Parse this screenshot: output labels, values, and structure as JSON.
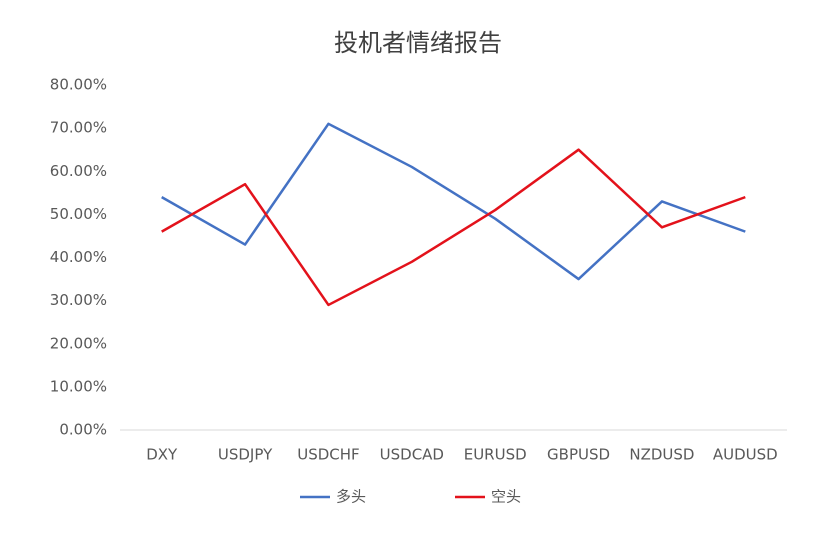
{
  "chart_data": {
    "type": "line",
    "title": "投机者情绪报告",
    "categories": [
      "DXY",
      "USDJPY",
      "USDCHF",
      "USDCAD",
      "EURUSD",
      "GBPUSD",
      "NZDUSD",
      "AUDUSD"
    ],
    "series": [
      {
        "name": "多头",
        "color": "#4472c4",
        "values": [
          54,
          43,
          71,
          61,
          49,
          35,
          53,
          46
        ]
      },
      {
        "name": "空头",
        "color": "#e3121b",
        "values": [
          46,
          57,
          29,
          39,
          51,
          65,
          47,
          54
        ]
      }
    ],
    "ylim": [
      0,
      80
    ],
    "yticks": [
      {
        "value": 0,
        "label": "0.00%"
      },
      {
        "value": 10,
        "label": "10.00%"
      },
      {
        "value": 20,
        "label": "20.00%"
      },
      {
        "value": 30,
        "label": "30.00%"
      },
      {
        "value": 40,
        "label": "40.00%"
      },
      {
        "value": 50,
        "label": "50.00%"
      },
      {
        "value": 60,
        "label": "60.00%"
      },
      {
        "value": 70,
        "label": "70.00%"
      },
      {
        "value": 80,
        "label": "80.00%"
      }
    ],
    "legend": "bottom"
  }
}
